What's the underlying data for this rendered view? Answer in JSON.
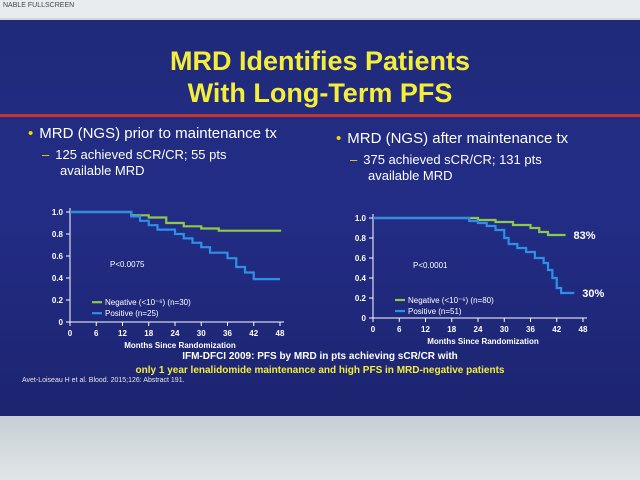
{
  "window": {
    "toolbar_text": "NABLE FULLSCREEN"
  },
  "slide": {
    "title_line1": "MRD Identifies Patients",
    "title_line2": "With Long-Term PFS",
    "left_bullet": "MRD (NGS) prior to maintenance tx",
    "left_sub_line1": "125 achieved sCR/CR; 55 pts",
    "left_sub_line2": "available MRD",
    "right_bullet": "MRD (NGS) after maintenance tx",
    "right_sub_line1": "375 achieved sCR/CR; 131 pts",
    "right_sub_line2": "available MRD",
    "caption_line1": "IFM-DFCI 2009: PFS by MRD in pts achieving sCR/CR with",
    "caption_line2": "only 1 year lenalidomide maintenance and high PFS in MRD-negative patients",
    "reference": "Avet-Loiseau H et al. Blood. 2015;126: Abstract 191.",
    "colors": {
      "negative": "#8fc84a",
      "positive": "#2e8fe8",
      "title": "#f4ee3a",
      "rule": "#c8322c"
    }
  },
  "chart_data": [
    {
      "type": "line",
      "xlabel": "Months Since Randomization",
      "ylabel": "",
      "xlim": [
        0,
        48
      ],
      "ylim": [
        0,
        1.0
      ],
      "x_ticks": [
        0,
        6,
        12,
        18,
        24,
        30,
        36,
        42,
        48
      ],
      "x_tick_labels": [
        "0",
        "6",
        "12",
        "18",
        "24",
        "30",
        "36",
        "42",
        "48"
      ],
      "y_ticks": [
        0,
        0.2,
        0.4,
        0.6,
        0.8,
        1.0
      ],
      "y_tick_labels": [
        "0",
        "0.2",
        "0.4",
        "0.6",
        "0.8",
        "1.0"
      ],
      "annotation": "P<0.0075",
      "legend_placement": "bottom-left",
      "series": [
        {
          "name": "Negative (<10⁻⁶) (n=30)",
          "color": "#8fc84a",
          "points": [
            [
              0,
              1.0
            ],
            [
              12,
              1.0
            ],
            [
              14,
              0.97
            ],
            [
              18,
              0.95
            ],
            [
              22,
              0.9
            ],
            [
              26,
              0.87
            ],
            [
              30,
              0.85
            ],
            [
              34,
              0.83
            ],
            [
              48,
              0.82
            ]
          ]
        },
        {
          "name": "Positive (n=25)",
          "color": "#2e8fe8",
          "points": [
            [
              0,
              1.0
            ],
            [
              12,
              1.0
            ],
            [
              14,
              0.96
            ],
            [
              16,
              0.92
            ],
            [
              18,
              0.88
            ],
            [
              20,
              0.84
            ],
            [
              24,
              0.8
            ],
            [
              26,
              0.76
            ],
            [
              28,
              0.72
            ],
            [
              30,
              0.68
            ],
            [
              32,
              0.63
            ],
            [
              36,
              0.58
            ],
            [
              38,
              0.5
            ],
            [
              40,
              0.45
            ],
            [
              42,
              0.39
            ],
            [
              48,
              0.39
            ]
          ]
        }
      ]
    },
    {
      "type": "line",
      "xlabel": "Months Since Randomization",
      "ylabel": "",
      "xlim": [
        0,
        48
      ],
      "ylim": [
        0,
        1.0
      ],
      "x_ticks": [
        0,
        6,
        12,
        18,
        24,
        30,
        36,
        42,
        48
      ],
      "x_tick_labels": [
        "0",
        "6",
        "12",
        "18",
        "24",
        "30",
        "36",
        "42",
        "48"
      ],
      "y_ticks": [
        0,
        0.2,
        0.4,
        0.6,
        0.8,
        1.0
      ],
      "y_tick_labels": [
        "0",
        "0.2",
        "0.4",
        "0.6",
        "0.8",
        "1.0"
      ],
      "annotation": "P<0.0001",
      "legend_placement": "bottom-left",
      "end_labels": [
        "83%",
        "30%"
      ],
      "series": [
        {
          "name": "Negative (<10⁻⁶) (n=80)",
          "color": "#8fc84a",
          "points": [
            [
              0,
              1.0
            ],
            [
              22,
              1.0
            ],
            [
              24,
              0.98
            ],
            [
              28,
              0.96
            ],
            [
              32,
              0.93
            ],
            [
              36,
              0.9
            ],
            [
              38,
              0.86
            ],
            [
              40,
              0.83
            ],
            [
              44,
              0.83
            ]
          ]
        },
        {
          "name": "Positive (n=51)",
          "color": "#2e8fe8",
          "points": [
            [
              0,
              1.0
            ],
            [
              20,
              1.0
            ],
            [
              22,
              0.97
            ],
            [
              24,
              0.95
            ],
            [
              26,
              0.92
            ],
            [
              28,
              0.88
            ],
            [
              30,
              0.8
            ],
            [
              31,
              0.74
            ],
            [
              33,
              0.7
            ],
            [
              35,
              0.66
            ],
            [
              37,
              0.6
            ],
            [
              39,
              0.55
            ],
            [
              40,
              0.48
            ],
            [
              41,
              0.4
            ],
            [
              42,
              0.3
            ],
            [
              43,
              0.25
            ],
            [
              46,
              0.25
            ]
          ]
        }
      ]
    }
  ]
}
